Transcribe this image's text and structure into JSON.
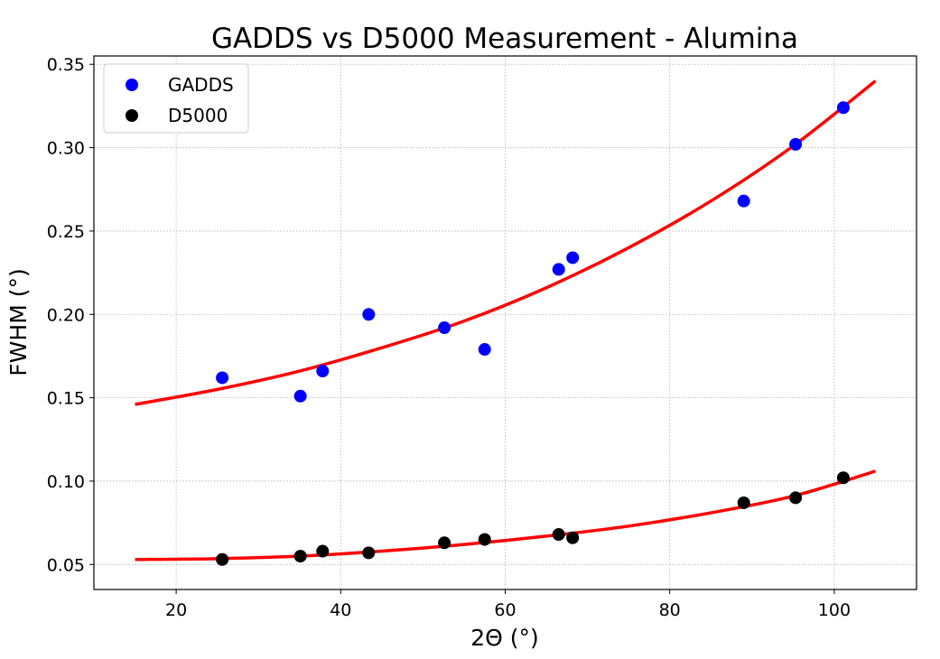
{
  "chart_data": {
    "type": "scatter",
    "title": "GADDS vs D5000 Measurement - Alumina",
    "xlabel": "2Θ (°)",
    "ylabel": "FWHM (°)",
    "xlim": [
      10,
      110
    ],
    "ylim": [
      0.035,
      0.355
    ],
    "xticks": [
      20,
      40,
      60,
      80,
      100
    ],
    "yticks": [
      0.05,
      0.1,
      0.15,
      0.2,
      0.25,
      0.3,
      0.35
    ],
    "xtick_labels": [
      "20",
      "40",
      "60",
      "80",
      "100"
    ],
    "ytick_labels": [
      "0.05",
      "0.10",
      "0.15",
      "0.20",
      "0.25",
      "0.30",
      "0.35"
    ],
    "grid": true,
    "legend_position": "upper-left",
    "series": [
      {
        "name": "GADDS",
        "kind": "scatter",
        "color": "#0000ff",
        "x": [
          25.6,
          35.1,
          37.8,
          43.4,
          52.6,
          57.5,
          66.5,
          68.2,
          89.0,
          95.3,
          101.1
        ],
        "y": [
          0.162,
          0.151,
          0.166,
          0.2,
          0.192,
          0.179,
          0.227,
          0.234,
          0.268,
          0.302,
          0.324
        ]
      },
      {
        "name": "D5000",
        "kind": "scatter",
        "color": "#000000",
        "x": [
          25.6,
          35.1,
          37.8,
          43.4,
          52.6,
          57.5,
          66.5,
          68.2,
          89.0,
          95.3,
          101.1
        ],
        "y": [
          0.053,
          0.055,
          0.058,
          0.057,
          0.063,
          0.065,
          0.068,
          0.066,
          0.087,
          0.09,
          0.102
        ]
      }
    ],
    "fit_curves": [
      {
        "kind": "line",
        "color": "#ff0000",
        "x": [
          15,
          25,
          35,
          45,
          55,
          65,
          75,
          85,
          95,
          105
        ],
        "y": [
          0.146,
          0.155,
          0.166,
          0.18,
          0.196,
          0.216,
          0.24,
          0.268,
          0.301,
          0.34
        ]
      },
      {
        "kind": "line",
        "color": "#ff0000",
        "x": [
          15,
          25,
          35,
          45,
          55,
          65,
          75,
          85,
          95,
          105
        ],
        "y": [
          0.053,
          0.0535,
          0.055,
          0.058,
          0.062,
          0.067,
          0.073,
          0.081,
          0.091,
          0.106
        ]
      }
    ]
  }
}
